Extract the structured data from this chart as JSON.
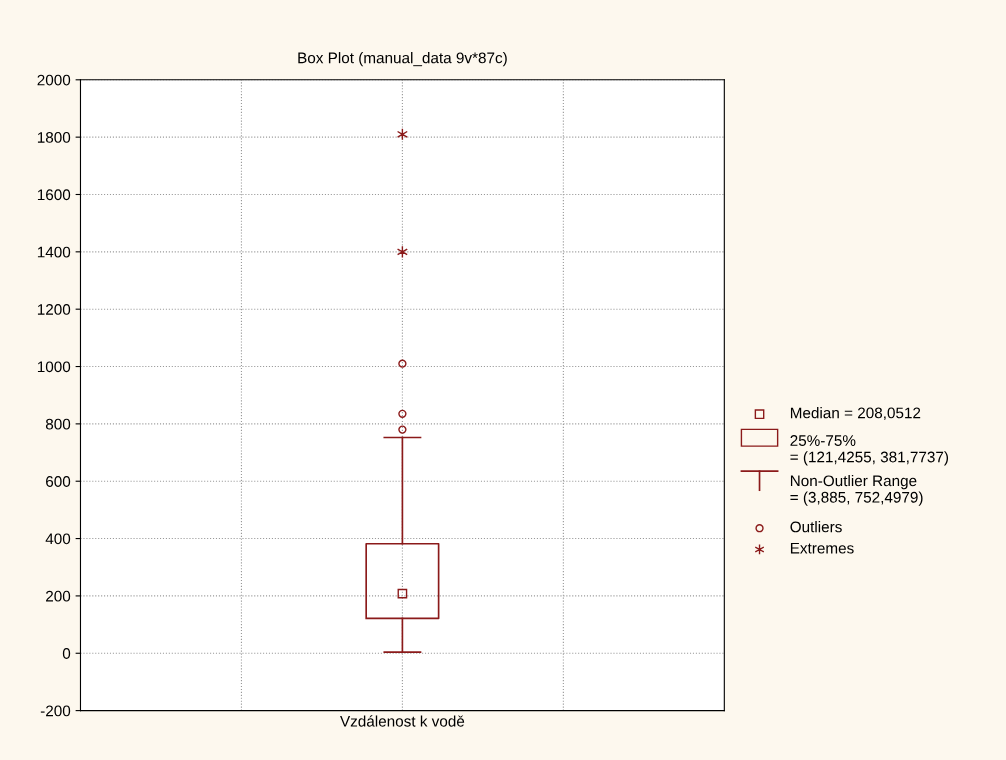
{
  "chart_data": {
    "type": "box",
    "title": "Box Plot (manual_data 9v*87c)",
    "categories": [
      "Vzdálenost k vodě"
    ],
    "ylim": [
      -200,
      2000
    ],
    "yticks": [
      -200,
      0,
      200,
      400,
      600,
      800,
      1000,
      1200,
      1400,
      1600,
      1800,
      2000
    ],
    "grid": true,
    "series": [
      {
        "name": null,
        "color": "#8b1a1a",
        "boxes": [
          {
            "low": 3.885,
            "q1": 121.4255,
            "median": 208.0512,
            "q3": 381.7737,
            "high": 752.4979,
            "outliers": [
              780,
              835,
              1010
            ]
          }
        ]
      },
      {
        "type": "scatter",
        "name": null,
        "color": "#8b1a1a",
        "marker": "cross",
        "x": [
          "Vzdálenost k vodě",
          "Vzdálenost k vodě"
        ],
        "values": [
          1400,
          1810
        ]
      }
    ],
    "annotations": [
      "Median = 208,0512",
      "25%-75%\n= (121,4255, 381,7737)",
      "Non-Outlier Range\n= (3,885, 752,4979)",
      "Outliers",
      "Extremes"
    ]
  }
}
